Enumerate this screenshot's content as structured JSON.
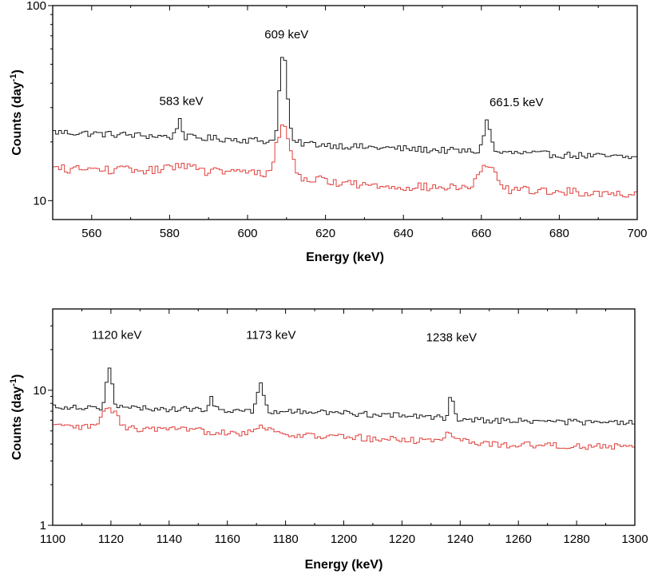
{
  "chart_data": [
    {
      "type": "line",
      "title": "",
      "xlabel": "Energy (keV)",
      "ylabel_main": "Counts (day",
      "ylabel_sup": "-1",
      "ylabel_close": ")",
      "y_scale": "log",
      "xlim": [
        550,
        700
      ],
      "ylim": [
        8.0,
        100
      ],
      "x_ticks": [
        560,
        580,
        600,
        620,
        640,
        660,
        680,
        700
      ],
      "x_tick_labels": [
        "560",
        "580",
        "600",
        "620",
        "640",
        "660",
        "680",
        "700"
      ],
      "y_tick_labels": [
        {
          "value": 10,
          "label": "10"
        },
        {
          "value": 100,
          "label": "100"
        }
      ],
      "grid": false,
      "series": [
        {
          "color": "#1a1a1a",
          "style": "step",
          "x_start": 550,
          "x_step": 0.75,
          "baseline": [
            [
              550,
              22.5
            ],
            [
              600,
              20.5
            ],
            [
              630,
              18.8
            ],
            [
              660,
              17.8
            ],
            [
              700,
              16.6
            ]
          ],
          "noise": 0.04,
          "peaks": [
            {
              "center": 582.5,
              "height": 5.0,
              "sigma": 0.6
            },
            {
              "center": 609.2,
              "height": 36,
              "sigma": 0.85
            },
            {
              "center": 661.5,
              "height": 8.0,
              "sigma": 0.8
            }
          ]
        },
        {
          "color": "#e0403c",
          "style": "step",
          "x_start": 550,
          "x_step": 0.75,
          "baseline": [
            [
              550,
              14.6
            ],
            [
              600,
              14.0
            ],
            [
              630,
              12.0
            ],
            [
              660,
              11.5
            ],
            [
              700,
              10.8
            ]
          ],
          "noise": 0.05,
          "peaks": [
            {
              "center": 583,
              "height": 1.2,
              "sigma": 2.5
            },
            {
              "center": 609.2,
              "height": 10.5,
              "sigma": 1.6
            },
            {
              "center": 661.5,
              "height": 3.5,
              "sigma": 2.0
            }
          ]
        }
      ],
      "annotations": [
        {
          "text": "583 keV",
          "x": 583,
          "y": 31
        },
        {
          "text": "609 keV",
          "x": 610,
          "y": 68
        },
        {
          "text": "661.5 keV",
          "x": 669,
          "y": 30.5
        }
      ]
    },
    {
      "type": "line",
      "title": "",
      "xlabel": "Energy (keV)",
      "ylabel_main": "Counts (day",
      "ylabel_sup": "-1",
      "ylabel_close": ")",
      "y_scale": "log",
      "xlim": [
        1100,
        1300
      ],
      "ylim": [
        1,
        40
      ],
      "x_ticks": [
        1100,
        1120,
        1140,
        1160,
        1180,
        1200,
        1220,
        1240,
        1260,
        1280,
        1300
      ],
      "x_tick_labels": [
        "1100",
        "1120",
        "1140",
        "1160",
        "1180",
        "1200",
        "1220",
        "1240",
        "1260",
        "1280",
        "1300"
      ],
      "y_tick_labels": [
        {
          "value": 1,
          "label": "1"
        },
        {
          "value": 10,
          "label": "10"
        }
      ],
      "grid": false,
      "series": [
        {
          "color": "#1a1a1a",
          "style": "step",
          "x_start": 1100,
          "x_step": 1.0,
          "baseline": [
            [
              1100,
              7.6
            ],
            [
              1150,
              7.2
            ],
            [
              1200,
              6.8
            ],
            [
              1250,
              6.0
            ],
            [
              1300,
              5.7
            ]
          ],
          "noise": 0.05,
          "peaks": [
            {
              "center": 1119.5,
              "height": 7.0,
              "sigma": 0.9
            },
            {
              "center": 1154.5,
              "height": 1.8,
              "sigma": 0.8
            },
            {
              "center": 1171.5,
              "height": 3.8,
              "sigma": 1.0
            },
            {
              "center": 1237,
              "height": 3.0,
              "sigma": 0.8
            }
          ]
        },
        {
          "color": "#e0403c",
          "style": "step",
          "x_start": 1100,
          "x_step": 1.0,
          "baseline": [
            [
              1100,
              5.4
            ],
            [
              1150,
              5.0
            ],
            [
              1200,
              4.5
            ],
            [
              1250,
              4.0
            ],
            [
              1300,
              3.8
            ]
          ],
          "noise": 0.06,
          "peaks": [
            {
              "center": 1119.5,
              "height": 2.0,
              "sigma": 2.5
            },
            {
              "center": 1172,
              "height": 0.6,
              "sigma": 3.0
            },
            {
              "center": 1237,
              "height": 0.6,
              "sigma": 3.0
            }
          ]
        }
      ],
      "annotations": [
        {
          "text": "1120 keV",
          "x": 1122,
          "y": 24
        },
        {
          "text": "1173 keV",
          "x": 1175,
          "y": 24
        },
        {
          "text": "1238 keV",
          "x": 1237,
          "y": 23
        }
      ]
    }
  ]
}
